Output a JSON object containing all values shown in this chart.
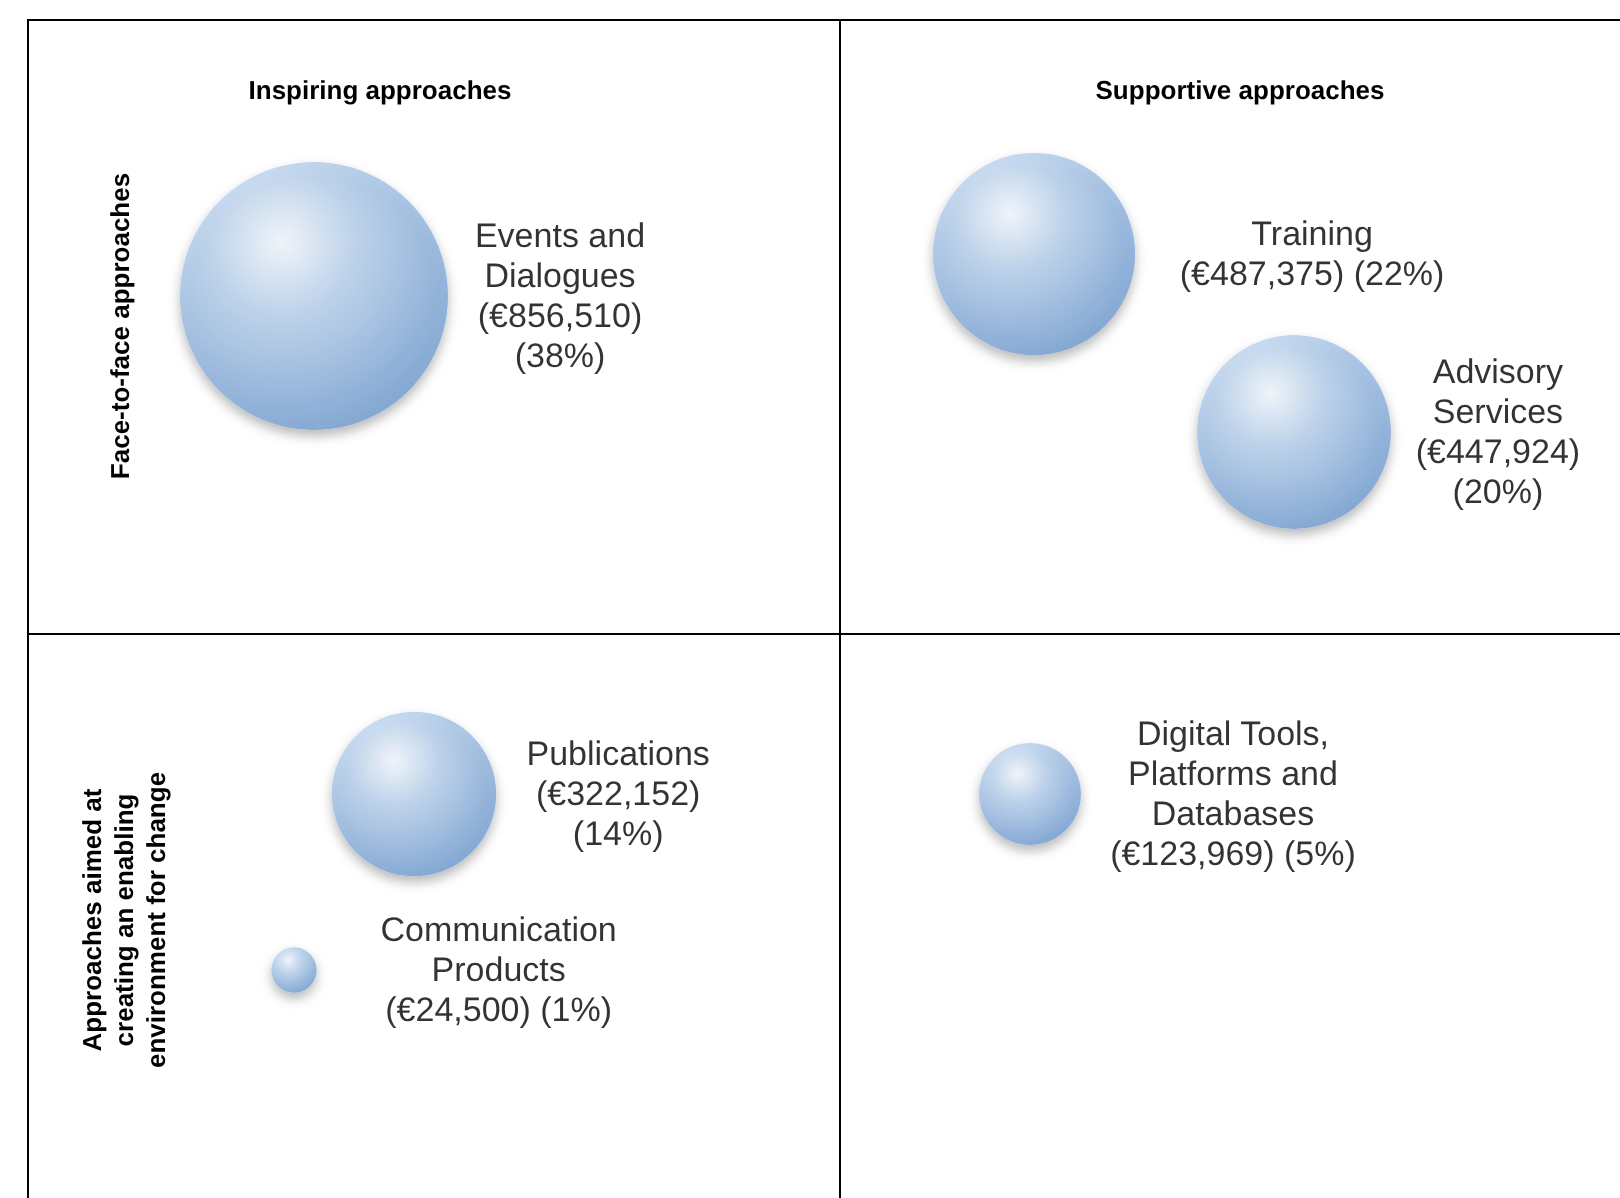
{
  "chart_data": {
    "type": "other",
    "color": "#6f9bd0",
    "categories": [
      "Events and Dialogues",
      "Training",
      "Advisory Services",
      "Publications",
      "Communication Products",
      "Digital Tools, Platforms and Databases"
    ],
    "values": [
      856510,
      487375,
      447924,
      322152,
      24500,
      123969
    ],
    "value_labels": [
      "(€856,510) (38%)",
      "(€487,375) (22%)",
      "(€447,924) (20%)",
      "(€322,152) (14%)",
      "(€24,500) (1%)",
      "(€123,969) (5%)"
    ],
    "annotations": [
      "Inspiring approaches",
      "Supportive approaches",
      "Face-to-face approaches",
      "Approaches aimed at creating an enabling environment for change"
    ]
  }
}
